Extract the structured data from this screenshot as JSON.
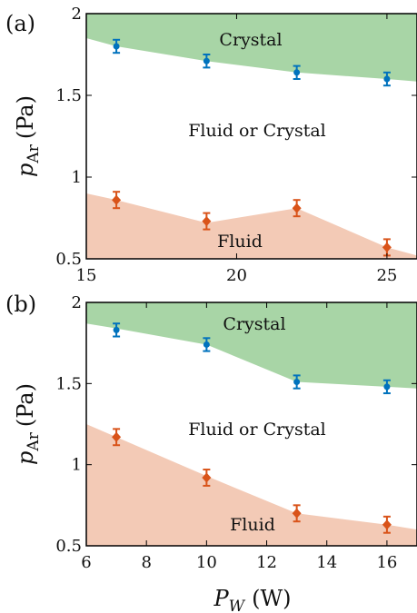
{
  "chart_data": [
    {
      "type": "scatter",
      "panel_label": "(a)",
      "ylabel": "p_Ar (Pa)",
      "ylabel_main": "p",
      "ylabel_sub": "Ar",
      "ylabel_unit": "(Pa)",
      "xlim": [
        15,
        26
      ],
      "ylim": [
        0.5,
        2
      ],
      "x_ticks": [
        15,
        20,
        25
      ],
      "y_ticks": [
        0.5,
        1,
        1.5,
        2
      ],
      "x_tick_labels": [
        "15",
        "20",
        "25"
      ],
      "y_tick_labels": [
        "0.5",
        "1",
        "1.5",
        "2"
      ],
      "regions": {
        "upper": "Crystal",
        "middle": "Fluid or Crystal",
        "lower": "Fluid"
      },
      "crystal_boundary": {
        "x": [
          15,
          16,
          19,
          22,
          25,
          26
        ],
        "y": [
          1.85,
          1.8,
          1.71,
          1.64,
          1.6,
          1.585
        ]
      },
      "fluid_boundary": {
        "x": [
          15,
          16,
          19,
          22,
          25,
          26
        ],
        "y": [
          0.9,
          0.86,
          0.72,
          0.81,
          0.57,
          0.52
        ]
      },
      "series": [
        {
          "marker": "circle",
          "color": "#0072bd",
          "x": [
            16,
            19,
            22,
            25
          ],
          "y": [
            1.8,
            1.71,
            1.64,
            1.6
          ],
          "err": [
            0.04,
            0.04,
            0.04,
            0.04
          ]
        },
        {
          "marker": "diamond",
          "color": "#d95319",
          "x": [
            16,
            19,
            22,
            25
          ],
          "y": [
            0.86,
            0.73,
            0.81,
            0.57
          ],
          "err": [
            0.05,
            0.05,
            0.05,
            0.05
          ]
        }
      ]
    },
    {
      "type": "scatter",
      "panel_label": "(b)",
      "ylabel": "p_Ar (Pa)",
      "ylabel_main": "p",
      "ylabel_sub": "Ar",
      "ylabel_unit": "(Pa)",
      "xlabel": "P_W (W)",
      "xlabel_main": "P",
      "xlabel_sub": "W",
      "xlabel_unit": "(W)",
      "xlim": [
        6,
        17
      ],
      "ylim": [
        0.5,
        2
      ],
      "x_ticks": [
        6,
        8,
        10,
        12,
        14,
        16
      ],
      "y_ticks": [
        0.5,
        1,
        1.5,
        2
      ],
      "x_tick_labels": [
        "6",
        "8",
        "10",
        "12",
        "14",
        "16"
      ],
      "y_tick_labels": [
        "0.5",
        "1",
        "1.5",
        "2"
      ],
      "regions": {
        "upper": "Crystal",
        "middle": "Fluid or Crystal",
        "lower": "Fluid"
      },
      "crystal_boundary": {
        "x": [
          6,
          7,
          10,
          13,
          16,
          17
        ],
        "y": [
          1.87,
          1.84,
          1.74,
          1.51,
          1.48,
          1.47
        ]
      },
      "fluid_boundary": {
        "x": [
          6,
          7,
          10,
          13,
          16,
          17
        ],
        "y": [
          1.25,
          1.17,
          0.93,
          0.7,
          0.63,
          0.6
        ]
      },
      "series": [
        {
          "marker": "circle",
          "color": "#0072bd",
          "x": [
            7,
            10,
            13,
            16
          ],
          "y": [
            1.83,
            1.74,
            1.51,
            1.48
          ],
          "err": [
            0.04,
            0.04,
            0.04,
            0.04
          ]
        },
        {
          "marker": "diamond",
          "color": "#d95319",
          "x": [
            7,
            10,
            13,
            16
          ],
          "y": [
            1.17,
            0.92,
            0.7,
            0.63
          ],
          "err": [
            0.05,
            0.05,
            0.05,
            0.05
          ]
        }
      ]
    }
  ],
  "colors": {
    "crystal_fill": "#a8d5a6",
    "fluid_fill": "#f3cab6",
    "blue": "#0072bd",
    "orange": "#d95319"
  }
}
